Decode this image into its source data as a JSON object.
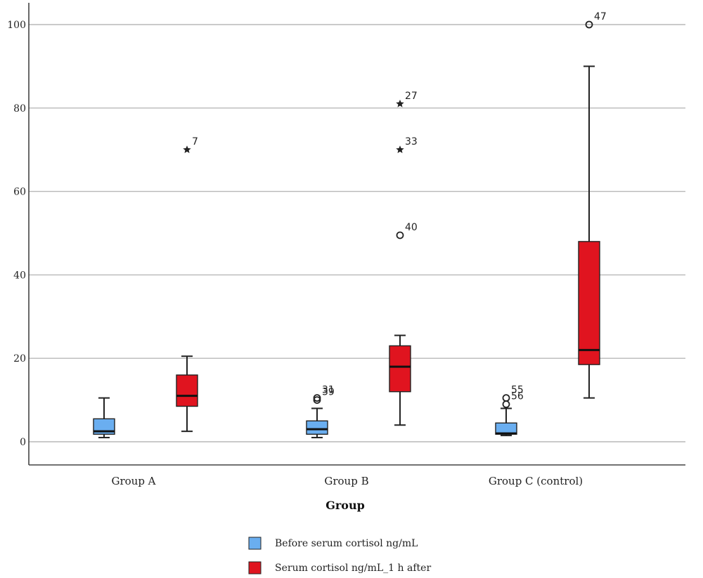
{
  "chart_data": {
    "type": "boxplot",
    "xlabel": "Group",
    "ylabel": "",
    "ylim": [
      -5,
      105
    ],
    "yticks": [
      0,
      20,
      40,
      60,
      80,
      100
    ],
    "grid": true,
    "legend_position": "bottom-center",
    "categories": [
      "Group A",
      "Group B",
      "Group C (control)"
    ],
    "series": [
      {
        "name": "Before serum cortisol ng/mL",
        "color": "#6aaef0",
        "boxes": [
          {
            "category": "Group A",
            "min": 1.0,
            "q1": 1.8,
            "median": 2.5,
            "q3": 5.5,
            "max": 10.5,
            "outliers": []
          },
          {
            "category": "Group B",
            "min": 1.0,
            "q1": 1.8,
            "median": 3.0,
            "q3": 5.0,
            "max": 8.0,
            "outliers": [
              {
                "label": "31",
                "value": 10.5,
                "marker": "circle"
              },
              {
                "label": "39",
                "value": 10.0,
                "marker": "circle"
              }
            ]
          },
          {
            "category": "Group C (control)",
            "min": 1.5,
            "q1": 1.8,
            "median": 2.0,
            "q3": 4.5,
            "max": 8.0,
            "outliers": [
              {
                "label": "55",
                "value": 10.5,
                "marker": "circle"
              },
              {
                "label": "56",
                "value": 9.0,
                "marker": "circle"
              }
            ]
          }
        ]
      },
      {
        "name": "Serum cortisol ng/mL_1 h after",
        "color": "#e0141f",
        "boxes": [
          {
            "category": "Group A",
            "min": 2.5,
            "q1": 8.5,
            "median": 11.0,
            "q3": 16.0,
            "max": 20.5,
            "outliers": [
              {
                "label": "7",
                "value": 70.0,
                "marker": "star"
              }
            ]
          },
          {
            "category": "Group B",
            "min": 4.0,
            "q1": 12.0,
            "median": 18.0,
            "q3": 23.0,
            "max": 25.5,
            "outliers": [
              {
                "label": "27",
                "value": 81.0,
                "marker": "star"
              },
              {
                "label": "33",
                "value": 70.0,
                "marker": "star"
              },
              {
                "label": "40",
                "value": 49.5,
                "marker": "circle"
              }
            ]
          },
          {
            "category": "Group C (control)",
            "min": 10.5,
            "q1": 18.5,
            "median": 22.0,
            "q3": 48.0,
            "max": 90.0,
            "outliers": [
              {
                "label": "47",
                "value": 100.0,
                "marker": "circle"
              }
            ]
          }
        ]
      }
    ]
  }
}
